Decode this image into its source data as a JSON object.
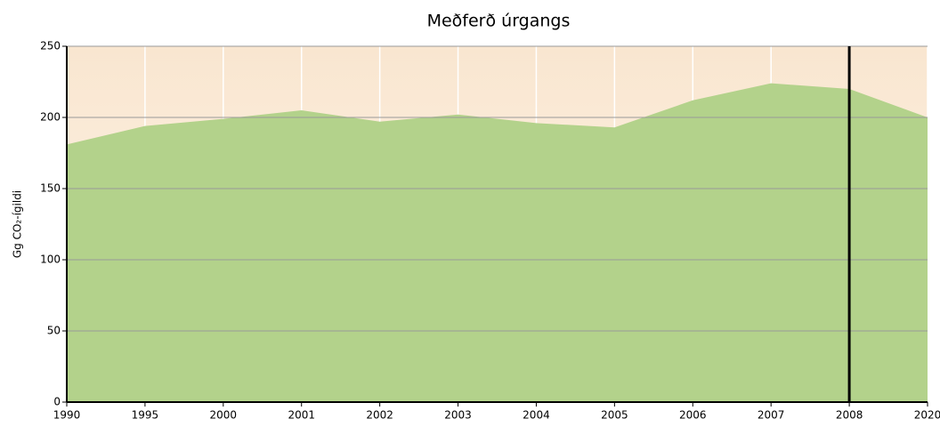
{
  "chart_data": {
    "type": "area",
    "title": "Meðferð úrgangs",
    "ylabel": "Gg CO₂-ígildi",
    "categories": [
      "1990",
      "1995",
      "2000",
      "2001",
      "2002",
      "2003",
      "2004",
      "2005",
      "2006",
      "2007",
      "2008",
      "2020"
    ],
    "values": [
      181,
      194,
      199,
      205,
      197,
      202,
      196,
      193,
      212,
      224,
      220,
      200
    ],
    "color": "#b3d28b",
    "ylim": [
      0,
      250
    ],
    "yticks": [
      0,
      50,
      100,
      150,
      200,
      250
    ],
    "grid": true
  }
}
